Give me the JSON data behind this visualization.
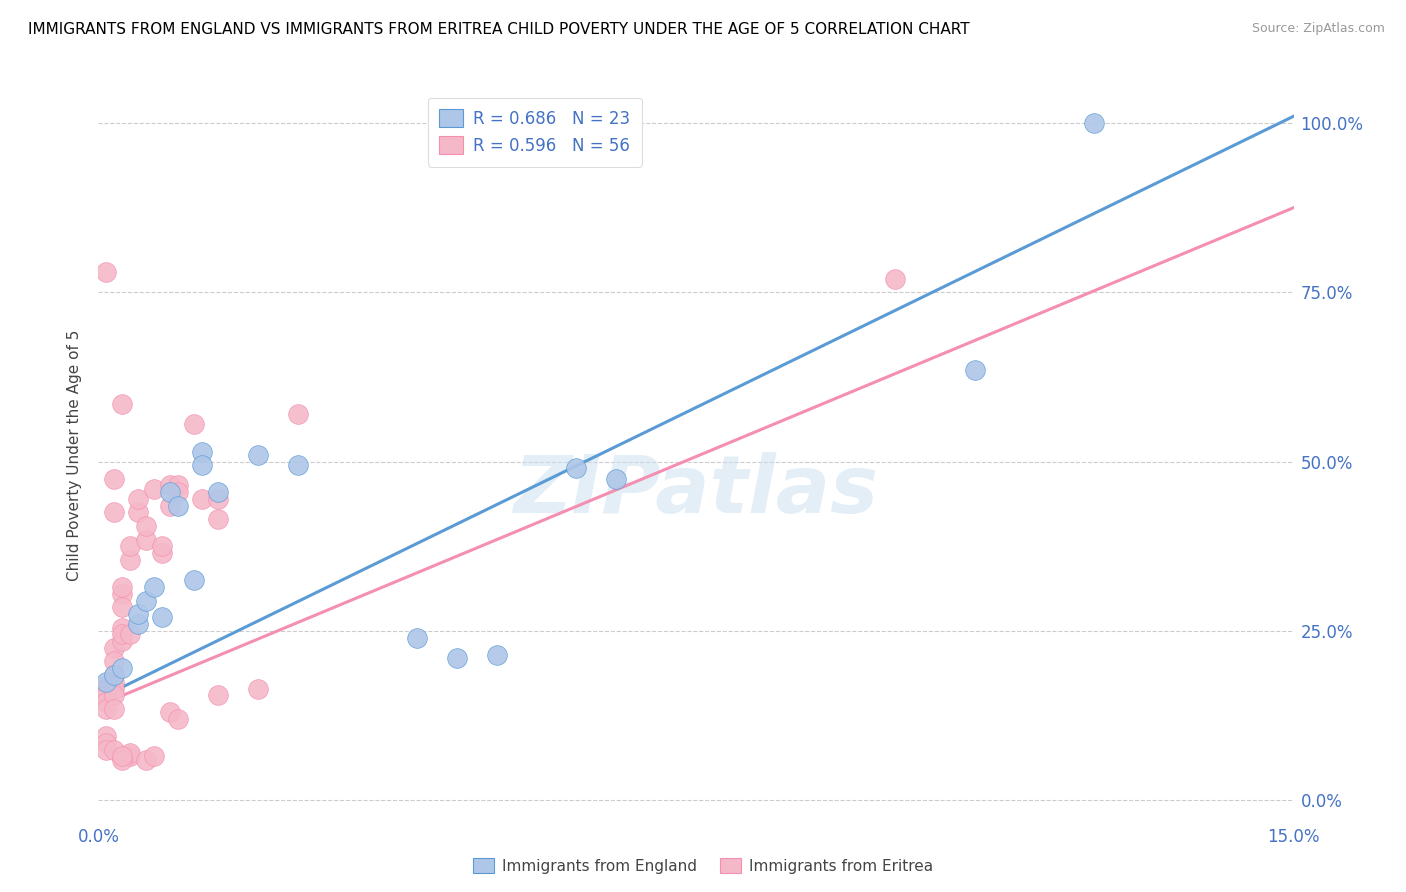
{
  "title": "IMMIGRANTS FROM ENGLAND VS IMMIGRANTS FROM ERITREA CHILD POVERTY UNDER THE AGE OF 5 CORRELATION CHART",
  "source": "Source: ZipAtlas.com",
  "ylabel": "Child Poverty Under the Age of 5",
  "xlim": [
    0.0,
    0.15
  ],
  "ylim": [
    -0.03,
    1.05
  ],
  "ytick_labels_right": [
    "0.0%",
    "25.0%",
    "50.0%",
    "75.0%",
    "100.0%"
  ],
  "ytick_vals": [
    0.0,
    0.25,
    0.5,
    0.75,
    1.0
  ],
  "england_R": "0.686",
  "england_N": "23",
  "eritrea_R": "0.596",
  "eritrea_N": "56",
  "england_color": "#aec6e8",
  "eritrea_color": "#f5b8c8",
  "england_line_color": "#5b9bd5",
  "eritrea_line_color": "#f48fb1",
  "watermark": "ZIPatlas",
  "england_scatter": [
    [
      0.001,
      0.175
    ],
    [
      0.002,
      0.185
    ],
    [
      0.003,
      0.195
    ],
    [
      0.005,
      0.26
    ],
    [
      0.005,
      0.275
    ],
    [
      0.006,
      0.295
    ],
    [
      0.007,
      0.315
    ],
    [
      0.008,
      0.27
    ],
    [
      0.009,
      0.455
    ],
    [
      0.01,
      0.435
    ],
    [
      0.012,
      0.325
    ],
    [
      0.013,
      0.515
    ],
    [
      0.013,
      0.495
    ],
    [
      0.015,
      0.455
    ],
    [
      0.02,
      0.51
    ],
    [
      0.025,
      0.495
    ],
    [
      0.04,
      0.24
    ],
    [
      0.045,
      0.21
    ],
    [
      0.05,
      0.215
    ],
    [
      0.06,
      0.49
    ],
    [
      0.065,
      0.475
    ],
    [
      0.11,
      0.635
    ],
    [
      0.125,
      1.0
    ]
  ],
  "eritrea_scatter": [
    [
      0.001,
      0.17
    ],
    [
      0.001,
      0.165
    ],
    [
      0.001,
      0.155
    ],
    [
      0.001,
      0.145
    ],
    [
      0.001,
      0.135
    ],
    [
      0.001,
      0.095
    ],
    [
      0.001,
      0.085
    ],
    [
      0.002,
      0.225
    ],
    [
      0.002,
      0.205
    ],
    [
      0.002,
      0.185
    ],
    [
      0.002,
      0.175
    ],
    [
      0.002,
      0.165
    ],
    [
      0.002,
      0.155
    ],
    [
      0.002,
      0.135
    ],
    [
      0.003,
      0.255
    ],
    [
      0.003,
      0.235
    ],
    [
      0.003,
      0.245
    ],
    [
      0.003,
      0.305
    ],
    [
      0.003,
      0.315
    ],
    [
      0.003,
      0.285
    ],
    [
      0.004,
      0.245
    ],
    [
      0.004,
      0.355
    ],
    [
      0.004,
      0.375
    ],
    [
      0.004,
      0.065
    ],
    [
      0.004,
      0.07
    ],
    [
      0.005,
      0.425
    ],
    [
      0.005,
      0.445
    ],
    [
      0.006,
      0.385
    ],
    [
      0.006,
      0.405
    ],
    [
      0.007,
      0.46
    ],
    [
      0.008,
      0.365
    ],
    [
      0.008,
      0.375
    ],
    [
      0.009,
      0.435
    ],
    [
      0.009,
      0.465
    ],
    [
      0.01,
      0.465
    ],
    [
      0.01,
      0.455
    ],
    [
      0.012,
      0.555
    ],
    [
      0.013,
      0.445
    ],
    [
      0.015,
      0.445
    ],
    [
      0.015,
      0.415
    ],
    [
      0.015,
      0.155
    ],
    [
      0.02,
      0.165
    ],
    [
      0.001,
      0.075
    ],
    [
      0.002,
      0.075
    ],
    [
      0.003,
      0.06
    ],
    [
      0.003,
      0.065
    ],
    [
      0.006,
      0.06
    ],
    [
      0.007,
      0.065
    ],
    [
      0.009,
      0.13
    ],
    [
      0.01,
      0.12
    ],
    [
      0.001,
      0.78
    ],
    [
      0.002,
      0.475
    ],
    [
      0.002,
      0.425
    ],
    [
      0.003,
      0.585
    ],
    [
      0.1,
      0.77
    ],
    [
      0.025,
      0.57
    ]
  ],
  "england_line": [
    [
      0.0,
      0.15
    ],
    [
      0.15,
      1.01
    ]
  ],
  "eritrea_line": [
    [
      0.0,
      0.14
    ],
    [
      0.15,
      0.875
    ]
  ]
}
